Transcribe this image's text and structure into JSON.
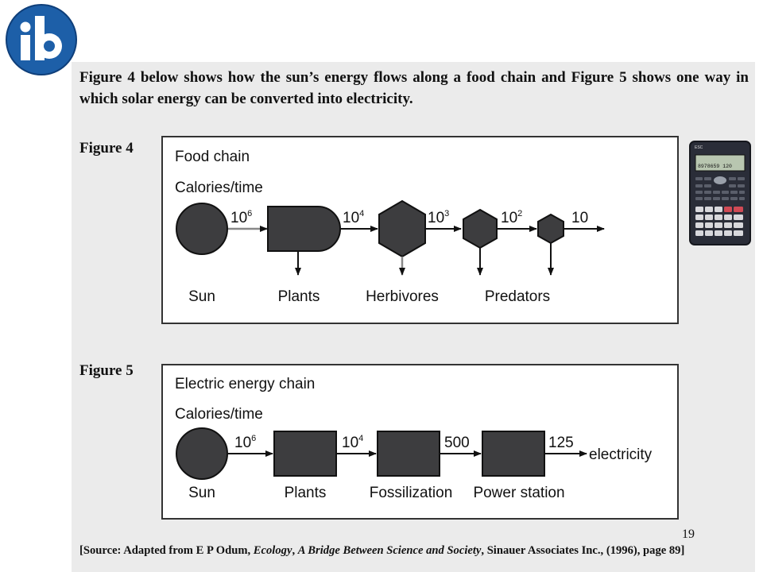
{
  "intro": "Figure 4 below shows how the sun’s energy flows along a food chain and Figure 5 shows one way in which solar energy can be converted into electricity.",
  "fig4": {
    "label": "Figure 4",
    "title": "Food chain",
    "subtitle": "Calories/time",
    "flows": [
      {
        "base": "10",
        "exp": "6"
      },
      {
        "base": "10",
        "exp": "4"
      },
      {
        "base": "10",
        "exp": "3"
      },
      {
        "base": "10",
        "exp": "2"
      },
      {
        "base": "10",
        "exp": ""
      }
    ],
    "nodes": [
      "Sun",
      "Plants",
      "Herbivores",
      "Predators"
    ]
  },
  "fig5": {
    "label": "Figure 5",
    "title": "Electric energy chain",
    "subtitle": "Calories/time",
    "flows": [
      {
        "base": "10",
        "exp": "6"
      },
      {
        "base": "10",
        "exp": "4"
      },
      {
        "base": "500",
        "exp": ""
      },
      {
        "base": "125",
        "exp": ""
      }
    ],
    "output": "electricity",
    "nodes": [
      "Sun",
      "Plants",
      "Fossilization",
      "Power station"
    ]
  },
  "calculator": {
    "brand": "ESC",
    "display": "8978659 120"
  },
  "page_number": "19",
  "source": {
    "prefix": "[Source: Adapted from E P Odum, ",
    "title1": "Ecology",
    "sep": ", ",
    "title2": "A Bridge Between Science and Society",
    "suffix": ", Sinauer Associates Inc., (1996), page 89]"
  },
  "colors": {
    "shape_fill": "#3d3d3f",
    "logo_blue": "#1d5fa8",
    "panel_bg": "#ebebeb"
  }
}
